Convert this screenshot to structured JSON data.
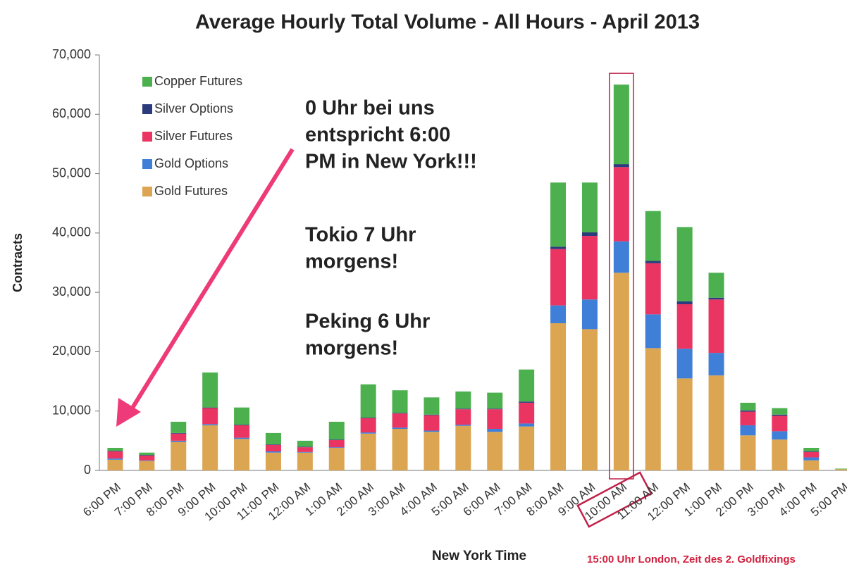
{
  "chart_data": {
    "type": "stacked_bar",
    "title": "Average Hourly Total Volume - All Hours - April 2013",
    "y_label": "Contracts",
    "x_label": "New York Time",
    "categories": [
      "6:00 PM",
      "7:00 PM",
      "8:00 PM",
      "9:00 PM",
      "10:00 PM",
      "11:00 PM",
      "12:00 AM",
      "1:00 AM",
      "2:00 AM",
      "3:00 AM",
      "4:00 AM",
      "5:00 AM",
      "6:00 AM",
      "7:00 AM",
      "8:00 AM",
      "9:00 AM",
      "10:00 AM",
      "11:00 AM",
      "12:00 PM",
      "1:00 PM",
      "2:00 PM",
      "3:00 PM",
      "4:00 PM",
      "5:00 PM"
    ],
    "series": [
      {
        "name": "Gold Futures",
        "color": "#dca552",
        "values": [
          1800,
          1600,
          4800,
          7600,
          5300,
          3000,
          3000,
          3800,
          6200,
          7000,
          6500,
          7500,
          6500,
          7400,
          24800,
          23800,
          33300,
          20600,
          15500,
          16000,
          5900,
          5200,
          1700,
          200
        ]
      },
      {
        "name": "Gold Options",
        "color": "#3f7fd8",
        "values": [
          200,
          100,
          200,
          200,
          200,
          200,
          100,
          100,
          200,
          200,
          200,
          200,
          500,
          500,
          3000,
          5000,
          5300,
          5700,
          5000,
          3800,
          1700,
          1400,
          500,
          0
        ]
      },
      {
        "name": "Silver Futures",
        "color": "#ea3562",
        "values": [
          1200,
          800,
          1200,
          2700,
          2100,
          1100,
          800,
          1200,
          2400,
          2400,
          2600,
          2600,
          3300,
          3500,
          9500,
          10700,
          12500,
          8600,
          7500,
          9000,
          2300,
          2600,
          900,
          0
        ]
      },
      {
        "name": "Silver Options",
        "color": "#2c3b7c",
        "values": [
          100,
          100,
          100,
          100,
          100,
          100,
          100,
          100,
          100,
          100,
          100,
          100,
          100,
          200,
          400,
          600,
          500,
          400,
          500,
          300,
          200,
          200,
          100,
          0
        ]
      },
      {
        "name": "Copper Futures",
        "color": "#4db04f",
        "values": [
          500,
          400,
          1900,
          5900,
          2900,
          1900,
          1000,
          3000,
          5600,
          3800,
          2900,
          2900,
          2700,
          5400,
          10800,
          8400,
          13400,
          8400,
          12500,
          4200,
          1300,
          1100,
          600,
          100
        ]
      }
    ],
    "ylim": [
      0,
      70000
    ],
    "yticks": [
      0,
      {
        "value": 10000,
        "label": "10,000"
      },
      {
        "value": 20000,
        "label": "20,000"
      },
      {
        "value": 30000,
        "label": "30,000"
      },
      {
        "value": 40000,
        "label": "40,000"
      },
      {
        "value": 50000,
        "label": "50,000"
      },
      {
        "value": 60000,
        "label": "60,000"
      },
      {
        "value": 70000,
        "label": "70,000"
      }
    ],
    "annotations": [
      [
        "0 Uhr bei uns",
        "entspricht 6:00",
        "PM in New York!!!"
      ],
      [
        "Tokio 7 Uhr",
        "morgens!"
      ],
      [
        "Peking 6 Uhr",
        "morgens!"
      ]
    ],
    "footnote": "15:00 Uhr London, Zeit des 2. Goldfixings"
  }
}
